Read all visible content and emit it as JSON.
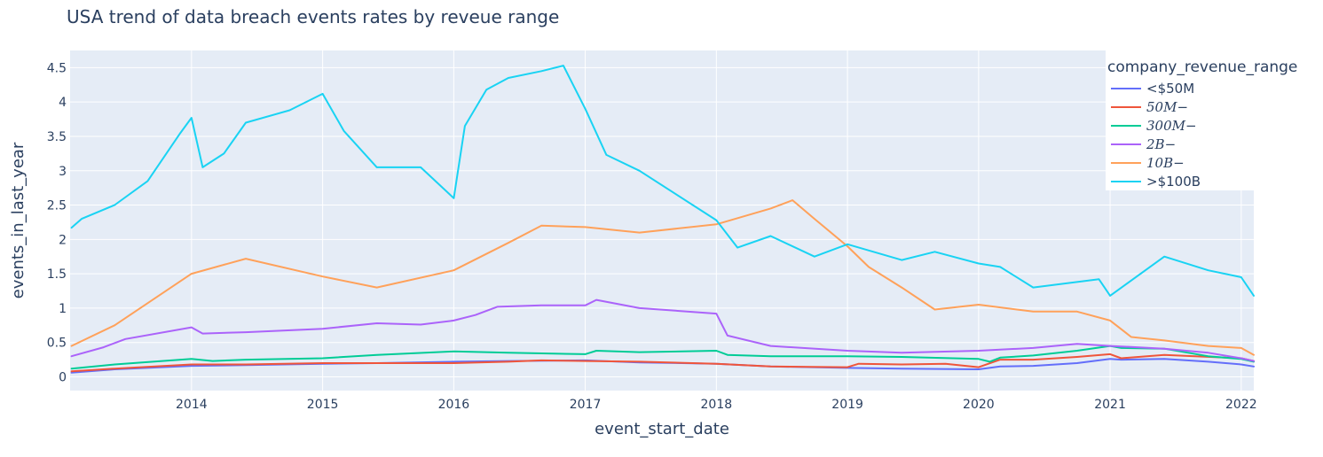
{
  "chart_data": {
    "type": "line",
    "title": "USA trend of data breach events rates by reveue range",
    "xlabel": "event_start_date",
    "ylabel": "events_in_last_year",
    "xlim": [
      "2013-01-28",
      "2022-02-05"
    ],
    "ylim": [
      -0.2,
      4.75
    ],
    "x_ticks": [
      "2014",
      "2015",
      "2016",
      "2017",
      "2018",
      "2019",
      "2020",
      "2021",
      "2022"
    ],
    "y_ticks": [
      "0",
      "0.5",
      "1",
      "1.5",
      "2",
      "2.5",
      "3",
      "3.5",
      "4",
      "4.5"
    ],
    "grid": true,
    "plot_background": "#e5ecf6",
    "legend": {
      "title": "company_revenue_range",
      "placement": "top-right"
    },
    "series": [
      {
        "name": "<$50M",
        "math": false,
        "color": "#636efa",
        "points": [
          [
            "2013-02-01",
            0.06
          ],
          [
            "2013-06-01",
            0.11
          ],
          [
            "2014-01-01",
            0.16
          ],
          [
            "2014-06-01",
            0.17
          ],
          [
            "2015-01-01",
            0.19
          ],
          [
            "2015-06-01",
            0.2
          ],
          [
            "2016-01-01",
            0.22
          ],
          [
            "2016-06-01",
            0.23
          ],
          [
            "2017-01-01",
            0.24
          ],
          [
            "2017-06-01",
            0.21
          ],
          [
            "2018-01-01",
            0.19
          ],
          [
            "2018-06-01",
            0.15
          ],
          [
            "2019-01-01",
            0.13
          ],
          [
            "2019-06-01",
            0.12
          ],
          [
            "2020-01-01",
            0.11
          ],
          [
            "2020-03-01",
            0.15
          ],
          [
            "2020-06-01",
            0.16
          ],
          [
            "2020-10-01",
            0.2
          ],
          [
            "2021-01-01",
            0.26
          ],
          [
            "2021-02-01",
            0.25
          ],
          [
            "2021-06-01",
            0.26
          ],
          [
            "2021-10-01",
            0.22
          ],
          [
            "2022-01-01",
            0.18
          ],
          [
            "2022-02-05",
            0.15
          ]
        ]
      },
      {
        "name": "50M−",
        "math": true,
        "color": "#ef553b",
        "points": [
          [
            "2013-02-01",
            0.08
          ],
          [
            "2013-06-01",
            0.12
          ],
          [
            "2014-01-01",
            0.18
          ],
          [
            "2014-06-01",
            0.18
          ],
          [
            "2015-01-01",
            0.2
          ],
          [
            "2015-06-01",
            0.2
          ],
          [
            "2016-01-01",
            0.2
          ],
          [
            "2016-06-01",
            0.22
          ],
          [
            "2016-09-01",
            0.24
          ],
          [
            "2017-01-01",
            0.23
          ],
          [
            "2017-06-01",
            0.22
          ],
          [
            "2018-01-01",
            0.19
          ],
          [
            "2018-06-01",
            0.15
          ],
          [
            "2019-01-01",
            0.14
          ],
          [
            "2019-02-01",
            0.19
          ],
          [
            "2019-06-01",
            0.18
          ],
          [
            "2019-10-01",
            0.19
          ],
          [
            "2020-01-01",
            0.14
          ],
          [
            "2020-03-01",
            0.25
          ],
          [
            "2020-06-01",
            0.25
          ],
          [
            "2020-10-01",
            0.29
          ],
          [
            "2021-01-01",
            0.33
          ],
          [
            "2021-02-01",
            0.27
          ],
          [
            "2021-06-01",
            0.32
          ],
          [
            "2022-01-01",
            0.27
          ],
          [
            "2022-02-05",
            0.23
          ]
        ]
      },
      {
        "name": "300M−",
        "math": true,
        "color": "#00cc96",
        "points": [
          [
            "2013-02-01",
            0.12
          ],
          [
            "2013-06-01",
            0.18
          ],
          [
            "2014-01-01",
            0.26
          ],
          [
            "2014-03-01",
            0.23
          ],
          [
            "2014-06-01",
            0.25
          ],
          [
            "2015-01-01",
            0.27
          ],
          [
            "2015-06-01",
            0.32
          ],
          [
            "2016-01-01",
            0.37
          ],
          [
            "2016-06-01",
            0.35
          ],
          [
            "2017-01-01",
            0.33
          ],
          [
            "2017-02-01",
            0.38
          ],
          [
            "2017-06-01",
            0.36
          ],
          [
            "2018-01-01",
            0.38
          ],
          [
            "2018-02-01",
            0.32
          ],
          [
            "2018-06-01",
            0.3
          ],
          [
            "2019-01-01",
            0.3
          ],
          [
            "2019-06-01",
            0.29
          ],
          [
            "2020-01-01",
            0.26
          ],
          [
            "2020-02-01",
            0.22
          ],
          [
            "2020-03-01",
            0.28
          ],
          [
            "2020-06-01",
            0.31
          ],
          [
            "2020-10-01",
            0.38
          ],
          [
            "2021-01-01",
            0.45
          ],
          [
            "2021-02-01",
            0.42
          ],
          [
            "2021-06-01",
            0.41
          ],
          [
            "2021-10-01",
            0.3
          ],
          [
            "2022-01-01",
            0.26
          ],
          [
            "2022-02-05",
            0.22
          ]
        ]
      },
      {
        "name": "2B−",
        "math": true,
        "color": "#ab63fa",
        "points": [
          [
            "2013-02-01",
            0.3
          ],
          [
            "2013-05-01",
            0.43
          ],
          [
            "2013-07-01",
            0.55
          ],
          [
            "2014-01-01",
            0.72
          ],
          [
            "2014-02-01",
            0.63
          ],
          [
            "2014-06-01",
            0.65
          ],
          [
            "2015-01-01",
            0.7
          ],
          [
            "2015-06-01",
            0.78
          ],
          [
            "2015-10-01",
            0.76
          ],
          [
            "2016-01-01",
            0.82
          ],
          [
            "2016-03-01",
            0.9
          ],
          [
            "2016-05-01",
            1.02
          ],
          [
            "2016-09-01",
            1.04
          ],
          [
            "2017-01-01",
            1.04
          ],
          [
            "2017-02-01",
            1.12
          ],
          [
            "2017-06-01",
            1.0
          ],
          [
            "2018-01-01",
            0.92
          ],
          [
            "2018-02-01",
            0.6
          ],
          [
            "2018-06-01",
            0.45
          ],
          [
            "2019-01-01",
            0.38
          ],
          [
            "2019-06-01",
            0.35
          ],
          [
            "2020-01-01",
            0.38
          ],
          [
            "2020-06-01",
            0.42
          ],
          [
            "2020-10-01",
            0.48
          ],
          [
            "2021-01-01",
            0.45
          ],
          [
            "2021-06-01",
            0.41
          ],
          [
            "2021-10-01",
            0.35
          ],
          [
            "2022-01-01",
            0.27
          ],
          [
            "2022-02-05",
            0.23
          ]
        ]
      },
      {
        "name": "10B−",
        "math": true,
        "color": "#ffa15a",
        "points": [
          [
            "2013-02-01",
            0.45
          ],
          [
            "2013-06-01",
            0.75
          ],
          [
            "2014-01-01",
            1.5
          ],
          [
            "2014-06-01",
            1.72
          ],
          [
            "2015-01-01",
            1.46
          ],
          [
            "2015-06-01",
            1.3
          ],
          [
            "2016-01-01",
            1.55
          ],
          [
            "2016-06-01",
            1.95
          ],
          [
            "2016-09-01",
            2.2
          ],
          [
            "2017-01-01",
            2.18
          ],
          [
            "2017-06-01",
            2.1
          ],
          [
            "2018-01-01",
            2.22
          ],
          [
            "2018-06-01",
            2.45
          ],
          [
            "2018-08-01",
            2.57
          ],
          [
            "2018-10-01",
            2.3
          ],
          [
            "2019-01-01",
            1.9
          ],
          [
            "2019-03-01",
            1.6
          ],
          [
            "2019-06-01",
            1.3
          ],
          [
            "2019-09-01",
            0.98
          ],
          [
            "2020-01-01",
            1.05
          ],
          [
            "2020-06-01",
            0.95
          ],
          [
            "2020-10-01",
            0.95
          ],
          [
            "2021-01-01",
            0.82
          ],
          [
            "2021-03-01",
            0.58
          ],
          [
            "2021-06-01",
            0.53
          ],
          [
            "2021-10-01",
            0.45
          ],
          [
            "2022-01-01",
            0.42
          ],
          [
            "2022-02-05",
            0.32
          ]
        ]
      },
      {
        "name": ">$100B",
        "math": false,
        "color": "#19d3f3",
        "points": [
          [
            "2013-02-01",
            2.17
          ],
          [
            "2013-03-01",
            2.3
          ],
          [
            "2013-06-01",
            2.5
          ],
          [
            "2013-09-01",
            2.85
          ],
          [
            "2013-12-01",
            3.55
          ],
          [
            "2014-01-01",
            3.77
          ],
          [
            "2014-02-01",
            3.05
          ],
          [
            "2014-04-01",
            3.25
          ],
          [
            "2014-06-01",
            3.7
          ],
          [
            "2014-10-01",
            3.88
          ],
          [
            "2015-01-01",
            4.12
          ],
          [
            "2015-03-01",
            3.58
          ],
          [
            "2015-06-01",
            3.05
          ],
          [
            "2015-10-01",
            3.05
          ],
          [
            "2016-01-01",
            2.6
          ],
          [
            "2016-02-01",
            3.65
          ],
          [
            "2016-04-01",
            4.18
          ],
          [
            "2016-06-01",
            4.35
          ],
          [
            "2016-09-01",
            4.45
          ],
          [
            "2016-11-01",
            4.53
          ],
          [
            "2017-01-01",
            3.9
          ],
          [
            "2017-03-01",
            3.23
          ],
          [
            "2017-06-01",
            3.0
          ],
          [
            "2018-01-01",
            2.28
          ],
          [
            "2018-03-01",
            1.88
          ],
          [
            "2018-06-01",
            2.05
          ],
          [
            "2018-10-01",
            1.75
          ],
          [
            "2019-01-01",
            1.93
          ],
          [
            "2019-06-01",
            1.7
          ],
          [
            "2019-09-01",
            1.82
          ],
          [
            "2020-01-01",
            1.65
          ],
          [
            "2020-03-01",
            1.6
          ],
          [
            "2020-06-01",
            1.3
          ],
          [
            "2020-12-01",
            1.42
          ],
          [
            "2021-01-01",
            1.18
          ],
          [
            "2021-06-01",
            1.75
          ],
          [
            "2021-10-01",
            1.55
          ],
          [
            "2022-01-01",
            1.45
          ],
          [
            "2022-02-05",
            1.18
          ]
        ]
      }
    ]
  }
}
